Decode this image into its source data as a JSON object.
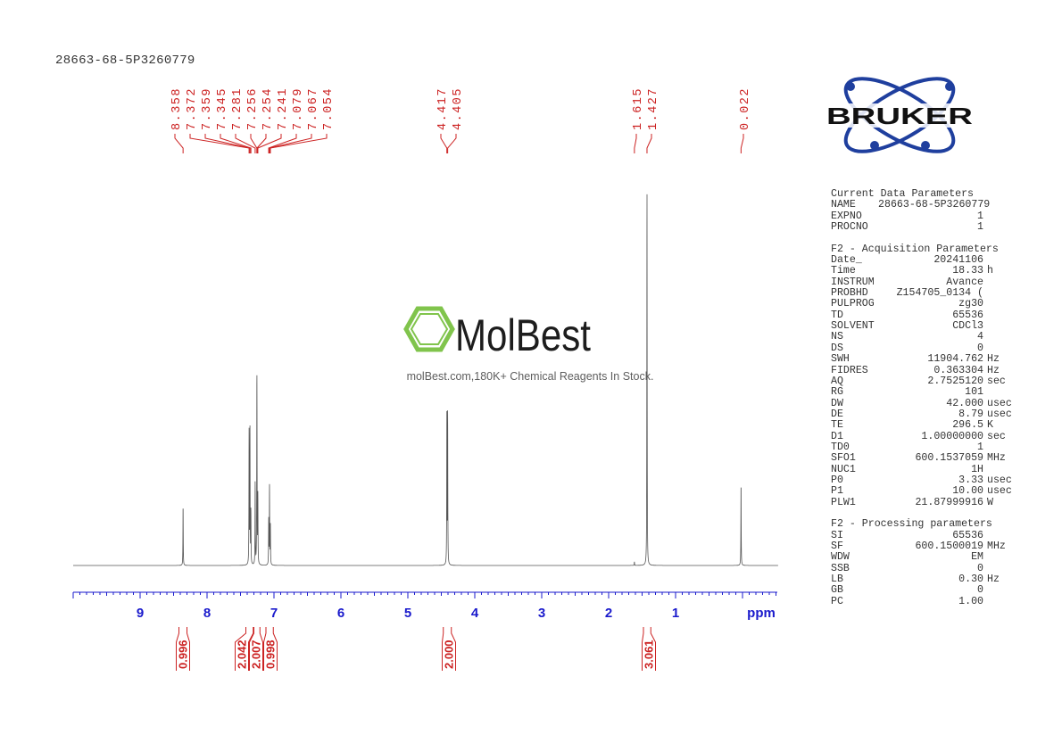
{
  "title": "28663-68-5P3260779",
  "watermark": {
    "brand": "MolBest",
    "tagline": "molBest.com,180K+ Chemical Reagents In Stock.",
    "color": "#7ac143"
  },
  "logo": {
    "text": "BRUKER",
    "color": "#1f3f9e"
  },
  "colors": {
    "spectrum": "#555555",
    "annotation": "#cc2222",
    "axis": "#1a1acc"
  },
  "params": {
    "sections": [
      {
        "heading": "Current Data Parameters",
        "rows": [
          [
            "NAME",
            "28663-68-5P3260779",
            ""
          ],
          [
            "EXPNO",
            "1",
            ""
          ],
          [
            "PROCNO",
            "1",
            ""
          ]
        ]
      },
      {
        "heading": "F2 - Acquisition Parameters",
        "rows": [
          [
            "Date_",
            "20241106",
            ""
          ],
          [
            "Time",
            "18.33",
            "h"
          ],
          [
            "INSTRUM",
            "Avance",
            ""
          ],
          [
            "PROBHD",
            "Z154705_0134 (",
            ""
          ],
          [
            "PULPROG",
            "zg30",
            ""
          ],
          [
            "TD",
            "65536",
            ""
          ],
          [
            "SOLVENT",
            "CDCl3",
            ""
          ],
          [
            "NS",
            "4",
            ""
          ],
          [
            "DS",
            "0",
            ""
          ],
          [
            "SWH",
            "11904.762",
            "Hz"
          ],
          [
            "FIDRES",
            "0.363304",
            "Hz"
          ],
          [
            "AQ",
            "2.7525120",
            "sec"
          ],
          [
            "RG",
            "101",
            ""
          ],
          [
            "DW",
            "42.000",
            "usec"
          ],
          [
            "DE",
            "8.79",
            "usec"
          ],
          [
            "TE",
            "296.5",
            "K"
          ],
          [
            "D1",
            "1.00000000",
            "sec"
          ],
          [
            "TD0",
            "1",
            ""
          ],
          [
            "SFO1",
            "600.1537059",
            "MHz"
          ],
          [
            "NUC1",
            "1H",
            ""
          ],
          [
            "P0",
            "3.33",
            "usec"
          ],
          [
            "P1",
            "10.00",
            "usec"
          ],
          [
            "PLW1",
            "21.87999916",
            "W"
          ]
        ]
      },
      {
        "heading": "F2 - Processing parameters",
        "rows": [
          [
            "SI",
            "65536",
            ""
          ],
          [
            "SF",
            "600.1500019",
            "MHz"
          ],
          [
            "WDW",
            "EM",
            ""
          ],
          [
            "SSB",
            "0",
            ""
          ],
          [
            "LB",
            "0.30",
            "Hz"
          ],
          [
            "GB",
            "0",
            ""
          ],
          [
            "PC",
            "1.00",
            ""
          ]
        ]
      }
    ]
  },
  "chart_data": {
    "type": "line",
    "title": "28663-68-5P3260779",
    "xlabel": "ppm",
    "xlim": [
      10.0,
      -0.5
    ],
    "x_reversed": true,
    "x_ticks": [
      "9",
      "8",
      "7",
      "6",
      "5",
      "4",
      "3",
      "2",
      "1"
    ],
    "peak_labels": [
      "8.358",
      "7.372",
      "7.359",
      "7.345",
      "7.281",
      "7.256",
      "7.254",
      "7.241",
      "7.079",
      "7.067",
      "7.054",
      "4.417",
      "4.405",
      "1.615",
      "1.427",
      "0.022"
    ],
    "peaks": [
      {
        "ppm": 8.358,
        "intensity": 16
      },
      {
        "ppm": 7.372,
        "intensity": 35
      },
      {
        "ppm": 7.359,
        "intensity": 36
      },
      {
        "ppm": 7.345,
        "intensity": 14
      },
      {
        "ppm": 7.281,
        "intensity": 22
      },
      {
        "ppm": 7.256,
        "intensity": 30
      },
      {
        "ppm": 7.254,
        "intensity": 28
      },
      {
        "ppm": 7.241,
        "intensity": 18
      },
      {
        "ppm": 7.079,
        "intensity": 12
      },
      {
        "ppm": 7.067,
        "intensity": 21
      },
      {
        "ppm": 7.054,
        "intensity": 11
      },
      {
        "ppm": 4.417,
        "intensity": 40
      },
      {
        "ppm": 4.405,
        "intensity": 40
      },
      {
        "ppm": 1.615,
        "intensity": 1
      },
      {
        "ppm": 1.427,
        "intensity": 100
      },
      {
        "ppm": 0.022,
        "intensity": 22
      }
    ],
    "integrals": [
      {
        "from": 8.42,
        "to": 8.3,
        "value": "0.996"
      },
      {
        "from": 7.42,
        "to": 7.31,
        "value": "2.042"
      },
      {
        "from": 7.3,
        "to": 7.21,
        "value": "2.007"
      },
      {
        "from": 7.12,
        "to": 7.01,
        "value": "0.998"
      },
      {
        "from": 4.47,
        "to": 4.35,
        "value": "2.000"
      },
      {
        "from": 1.48,
        "to": 1.37,
        "value": "3.061"
      }
    ]
  }
}
